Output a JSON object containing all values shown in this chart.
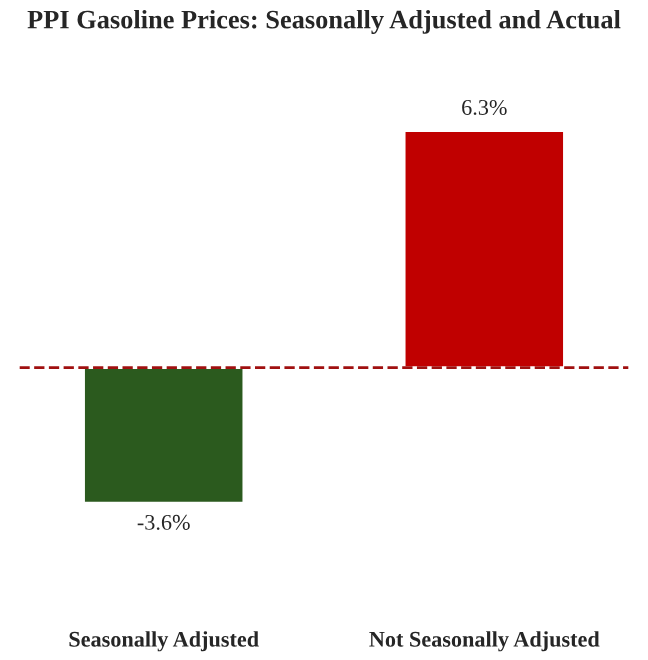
{
  "chart_data": {
    "type": "bar",
    "title": "PPI Gasoline Prices: Seasonally Adjusted and Actual",
    "categories": [
      "Seasonally Adjusted",
      "Not Seasonally Adjusted"
    ],
    "values": [
      -3.6,
      6.3
    ],
    "colors": [
      "#2b5a1e",
      "#c00000"
    ],
    "value_labels": [
      "-3.6%",
      "6.3%"
    ],
    "ref_lines": [
      {
        "axis": "y",
        "value": 0,
        "color": "#a01010",
        "line_style": "dashed"
      }
    ]
  }
}
